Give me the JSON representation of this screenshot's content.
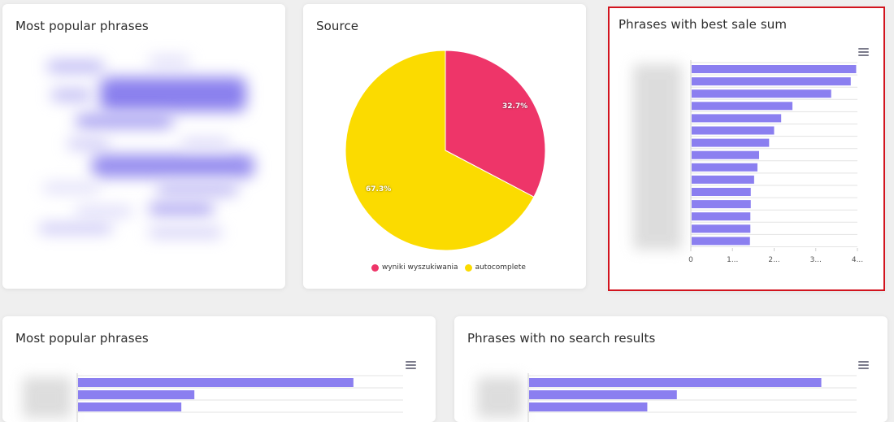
{
  "colors": {
    "bar": "#8b7ff0",
    "pie_red": "#ee3569",
    "pie_yellow": "#fbdb00",
    "selection": "#d2141e"
  },
  "cards": {
    "top_left": {
      "title": "Most popular phrases"
    },
    "source": {
      "title": "Source",
      "slices": [
        {
          "label": "wyniki wyszukiwania",
          "value": 32.7,
          "text": "32.7%"
        },
        {
          "label": "autocomplete",
          "value": 67.3,
          "text": "67.3%"
        }
      ],
      "legend": [
        "wyniki wyszukiwania",
        "autocomplete"
      ]
    },
    "best_sale": {
      "title": "Phrases with best sale sum",
      "menu_icon": "hamburger-icon",
      "x_ticks": [
        "0",
        "1...",
        "2...",
        "3...",
        "4..."
      ]
    },
    "bottom_left": {
      "title": "Most popular phrases",
      "menu_icon": "hamburger-icon"
    },
    "bottom_right": {
      "title": "Phrases with no search results",
      "menu_icon": "hamburger-icon"
    }
  },
  "chart_data": [
    {
      "type": "pie",
      "title": "Source",
      "series": [
        {
          "name": "wyniki wyszukiwania",
          "value": 32.7
        },
        {
          "name": "autocomplete",
          "value": 67.3
        }
      ],
      "legend": "bottom"
    },
    {
      "type": "bar",
      "orientation": "horizontal",
      "title": "Phrases with best sale sum",
      "x_ticks": [
        "0",
        "1...",
        "2...",
        "3...",
        "4..."
      ],
      "xlim": [
        0,
        4
      ],
      "values": [
        3.95,
        3.82,
        3.35,
        2.42,
        2.15,
        1.98,
        1.86,
        1.62,
        1.58,
        1.5,
        1.42,
        1.42,
        1.41,
        1.41,
        1.4
      ]
    },
    {
      "type": "bar",
      "orientation": "horizontal",
      "title": "Most popular phrases",
      "values_fraction_of_axis": [
        0.845,
        0.357,
        0.317
      ]
    },
    {
      "type": "bar",
      "orientation": "horizontal",
      "title": "Phrases with no search results",
      "values_fraction_of_axis": [
        0.89,
        0.45,
        0.36
      ]
    }
  ]
}
